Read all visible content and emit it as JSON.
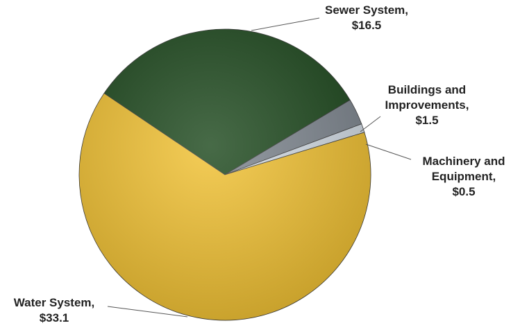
{
  "chart_data": {
    "type": "pie",
    "title": "",
    "slices": [
      {
        "name": "Sewer System",
        "value": 16.5,
        "label_lines": [
          "Sewer System,",
          "$16.5"
        ],
        "color": "#1f4a1f"
      },
      {
        "name": "Buildings and Improvements",
        "value": 1.5,
        "label_lines": [
          "Buildings and",
          "Improvements,",
          "$1.5"
        ],
        "color": "#7f8790"
      },
      {
        "name": "Machinery and Equipment",
        "value": 0.5,
        "label_lines": [
          "Machinery and",
          "Equipment,",
          "$0.5"
        ],
        "color": "#d4dde6"
      },
      {
        "name": "Water System",
        "value": 33.1,
        "label_lines": [
          "Water System,",
          "$33.1"
        ],
        "color": "#f2c233"
      }
    ],
    "legend": "none"
  }
}
